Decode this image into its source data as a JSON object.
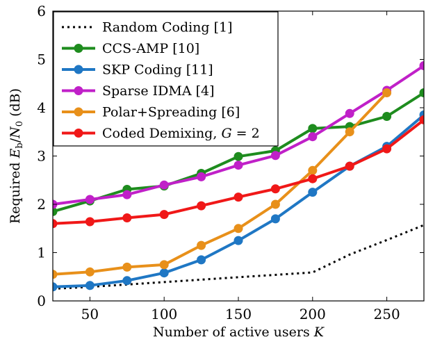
{
  "chart_data": {
    "type": "line",
    "xlabel": {
      "text": "Number of active users ",
      "math": "K"
    },
    "ylabel": {
      "prefix": "Required ",
      "e": "E",
      "e_sub": "b",
      "slash": "/",
      "n": "N",
      "n_sub": "0",
      "suffix": " (dB)"
    },
    "xlim": [
      25,
      275
    ],
    "ylim": [
      0,
      6
    ],
    "xticks": [
      50,
      100,
      150,
      200,
      250
    ],
    "yticks": [
      0,
      1,
      2,
      3,
      4,
      5,
      6
    ],
    "grid": false,
    "legend_position": "top-left",
    "series": [
      {
        "name": "Random Coding [1]",
        "color": "#000000",
        "style": "dotted",
        "marker": false,
        "x": [
          25,
          50,
          75,
          100,
          125,
          150,
          175,
          200,
          225,
          250,
          275
        ],
        "y": [
          0.25,
          0.29,
          0.34,
          0.39,
          0.44,
          0.49,
          0.54,
          0.59,
          0.96,
          1.26,
          1.57
        ]
      },
      {
        "name": "CCS-AMP [10]",
        "color": "#1e8c1e",
        "style": "solid",
        "marker": true,
        "x": [
          25,
          50,
          75,
          100,
          125,
          150,
          175,
          200,
          225,
          250,
          275
        ],
        "y": [
          1.85,
          2.07,
          2.31,
          2.38,
          2.64,
          2.99,
          3.11,
          3.57,
          3.61,
          3.82,
          4.31
        ]
      },
      {
        "name": "SKP Coding [11]",
        "color": "#1f77c4",
        "style": "solid",
        "marker": true,
        "x": [
          25,
          50,
          75,
          100,
          125,
          150,
          175,
          200,
          225,
          250,
          275
        ],
        "y": [
          0.29,
          0.32,
          0.42,
          0.58,
          0.85,
          1.25,
          1.7,
          2.25,
          2.79,
          3.2,
          3.85
        ]
      },
      {
        "name": "Sparse IDMA [4]",
        "color": "#c020c8",
        "style": "solid",
        "marker": true,
        "x": [
          25,
          50,
          75,
          100,
          125,
          150,
          175,
          200,
          225,
          250,
          275
        ],
        "y": [
          2.0,
          2.1,
          2.2,
          2.4,
          2.57,
          2.81,
          3.01,
          3.4,
          3.88,
          4.36,
          4.87
        ]
      },
      {
        "name": "Polar+Spreading [6]",
        "color": "#e8901a",
        "style": "solid",
        "marker": true,
        "x": [
          25,
          50,
          75,
          100,
          125,
          150,
          175,
          200,
          225,
          250
        ],
        "y": [
          0.55,
          0.6,
          0.7,
          0.75,
          1.15,
          1.5,
          2.0,
          2.7,
          3.5,
          4.31
        ]
      },
      {
        "name": "Coded Demixing, ",
        "name_math": "G",
        "name_suffix": " = 2",
        "color": "#f01818",
        "style": "solid",
        "marker": true,
        "x": [
          25,
          50,
          75,
          100,
          125,
          150,
          175,
          200,
          225,
          250,
          275
        ],
        "y": [
          1.6,
          1.64,
          1.72,
          1.79,
          1.97,
          2.15,
          2.32,
          2.53,
          2.79,
          3.15,
          3.75
        ]
      }
    ]
  }
}
